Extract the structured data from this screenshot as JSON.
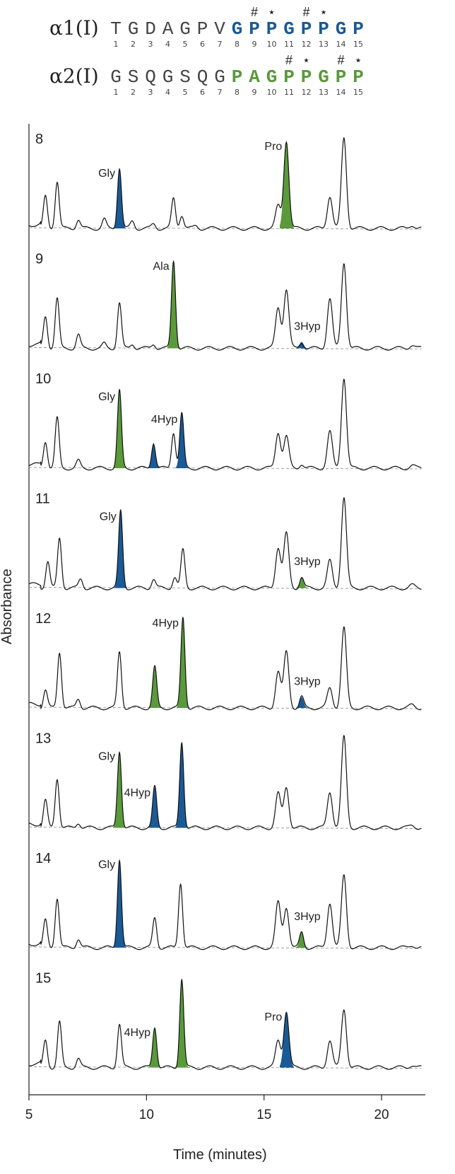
{
  "colors": {
    "blue": "#1a5a96",
    "green": "#5a9a3a"
  },
  "sequences": [
    {
      "chain": "α1(I)",
      "residues": [
        "T",
        "G",
        "D",
        "A",
        "G",
        "P",
        "V",
        "G",
        "P",
        "P",
        "G",
        "P",
        "P",
        "G",
        "P"
      ],
      "highlight_from": 8,
      "highlight_color": "blue",
      "numbers": [
        "1",
        "2",
        "3",
        "4",
        "5",
        "6",
        "7",
        "8",
        "9",
        "10",
        "11",
        "12",
        "13",
        "14",
        "15"
      ],
      "marks": {
        "9": "#",
        "10": "⋆",
        "12": "#",
        "13": "⋆"
      }
    },
    {
      "chain": "α2(I)",
      "residues": [
        "G",
        "S",
        "Q",
        "G",
        "S",
        "Q",
        "G",
        "P",
        "A",
        "G",
        "P",
        "P",
        "G",
        "P",
        "P"
      ],
      "highlight_from": 8,
      "highlight_color": "green",
      "numbers": [
        "1",
        "2",
        "3",
        "4",
        "5",
        "6",
        "7",
        "8",
        "9",
        "10",
        "11",
        "12",
        "13",
        "14",
        "15"
      ],
      "marks": {
        "11": "#",
        "12": "⋆",
        "14": "#",
        "15": "⋆"
      }
    }
  ],
  "chart_data": {
    "type": "line",
    "xlabel": "Time (minutes)",
    "ylabel": "Absorbance",
    "xlim": [
      5,
      21.8
    ],
    "xticks": [
      "5",
      "10",
      "15",
      "20"
    ],
    "panels": [
      {
        "cycle": "8",
        "peaks": [
          [
            5.7,
            0.35
          ],
          [
            6.2,
            0.52
          ],
          [
            7.1,
            0.1
          ],
          [
            8.2,
            0.1
          ],
          [
            8.85,
            0.67,
            "blue",
            "Gly"
          ],
          [
            9.4,
            0.08
          ],
          [
            10.3,
            0.05
          ],
          [
            11.15,
            0.33
          ],
          [
            11.5,
            0.15
          ],
          [
            12.1,
            0.03
          ],
          [
            15.6,
            0.25
          ],
          [
            15.95,
            0.97,
            "green",
            "Pro"
          ],
          [
            17.8,
            0.36
          ],
          [
            18.4,
            1.0
          ],
          [
            21.3,
            0.04
          ]
        ]
      },
      {
        "cycle": "9",
        "peaks": [
          [
            5.7,
            0.35
          ],
          [
            6.2,
            0.55
          ],
          [
            7.1,
            0.15
          ],
          [
            8.2,
            0.05
          ],
          [
            8.85,
            0.5
          ],
          [
            9.4,
            0.05
          ],
          [
            10.3,
            0.05
          ],
          [
            11.15,
            0.97,
            "green",
            "Ala"
          ],
          [
            15.6,
            0.45
          ],
          [
            15.95,
            0.65
          ],
          [
            16.6,
            0.07,
            "blue",
            "3Hyp"
          ],
          [
            17.8,
            0.55
          ],
          [
            18.4,
            0.95
          ],
          [
            21.3,
            0.04
          ]
        ]
      },
      {
        "cycle": "10",
        "peaks": [
          [
            5.7,
            0.3
          ],
          [
            6.2,
            0.55
          ],
          [
            7.1,
            0.08
          ],
          [
            8.85,
            0.85,
            "green",
            "Gly"
          ],
          [
            10.3,
            0.28,
            "blue",
            ""
          ],
          [
            11.15,
            0.4
          ],
          [
            11.5,
            0.6,
            "blue",
            "4Hyp"
          ],
          [
            15.6,
            0.4
          ],
          [
            15.95,
            0.35
          ],
          [
            16.6,
            0.05
          ],
          [
            17.8,
            0.4
          ],
          [
            18.4,
            1.0
          ],
          [
            21.3,
            0.03
          ]
        ]
      },
      {
        "cycle": "11",
        "peaks": [
          [
            5.8,
            0.3
          ],
          [
            6.3,
            0.55
          ],
          [
            7.2,
            0.1
          ],
          [
            8.9,
            0.85,
            "blue",
            "Gly"
          ],
          [
            10.3,
            0.1
          ],
          [
            11.2,
            0.12
          ],
          [
            11.55,
            0.42
          ],
          [
            15.6,
            0.45
          ],
          [
            15.95,
            0.6
          ],
          [
            16.6,
            0.12,
            "green",
            "3Hyp"
          ],
          [
            17.8,
            0.3
          ],
          [
            18.4,
            1.0
          ],
          [
            21.3,
            0.03
          ]
        ]
      },
      {
        "cycle": "12",
        "peaks": [
          [
            5.7,
            0.2
          ],
          [
            6.3,
            0.62
          ],
          [
            7.1,
            0.1
          ],
          [
            8.85,
            0.62
          ],
          [
            10.35,
            0.45,
            "green",
            ""
          ],
          [
            11.55,
            1.0,
            "green",
            "4Hyp"
          ],
          [
            15.6,
            0.4
          ],
          [
            15.95,
            0.62
          ],
          [
            16.6,
            0.12,
            "blue",
            "3Hyp"
          ],
          [
            17.8,
            0.22
          ],
          [
            18.4,
            0.88
          ],
          [
            21.3,
            0.03
          ]
        ]
      },
      {
        "cycle": "13",
        "peaks": [
          [
            5.7,
            0.3
          ],
          [
            6.2,
            0.55
          ],
          [
            7.1,
            0.06
          ],
          [
            8.85,
            0.85,
            "green",
            "Gly"
          ],
          [
            10.35,
            0.45,
            "blue",
            "4Hyp"
          ],
          [
            11.5,
            0.95,
            "blue",
            ""
          ],
          [
            15.6,
            0.38
          ],
          [
            15.95,
            0.45
          ],
          [
            17.8,
            0.4
          ],
          [
            18.4,
            1.0
          ],
          [
            21.3,
            0.03
          ]
        ]
      },
      {
        "cycle": "14",
        "peaks": [
          [
            5.7,
            0.3
          ],
          [
            6.2,
            0.55
          ],
          [
            7.1,
            0.1
          ],
          [
            8.85,
            0.98,
            "blue",
            "Gly"
          ],
          [
            10.35,
            0.33
          ],
          [
            11.45,
            0.72
          ],
          [
            15.6,
            0.5
          ],
          [
            15.95,
            0.45
          ],
          [
            16.6,
            0.17,
            "green",
            "3Hyp"
          ],
          [
            17.8,
            0.5
          ],
          [
            18.4,
            0.8
          ],
          [
            21.3,
            0.03
          ]
        ]
      },
      {
        "cycle": "15",
        "peaks": [
          [
            5.7,
            0.3
          ],
          [
            6.3,
            0.5
          ],
          [
            7.1,
            0.1
          ],
          [
            8.85,
            0.48
          ],
          [
            10.35,
            0.45,
            "green",
            "4Hyp"
          ],
          [
            11.5,
            0.98,
            "green",
            ""
          ],
          [
            15.6,
            0.3
          ],
          [
            15.95,
            0.62,
            "blue",
            "Pro"
          ],
          [
            17.8,
            0.3
          ],
          [
            18.4,
            0.65
          ],
          [
            21.3,
            0.03
          ]
        ]
      }
    ]
  }
}
